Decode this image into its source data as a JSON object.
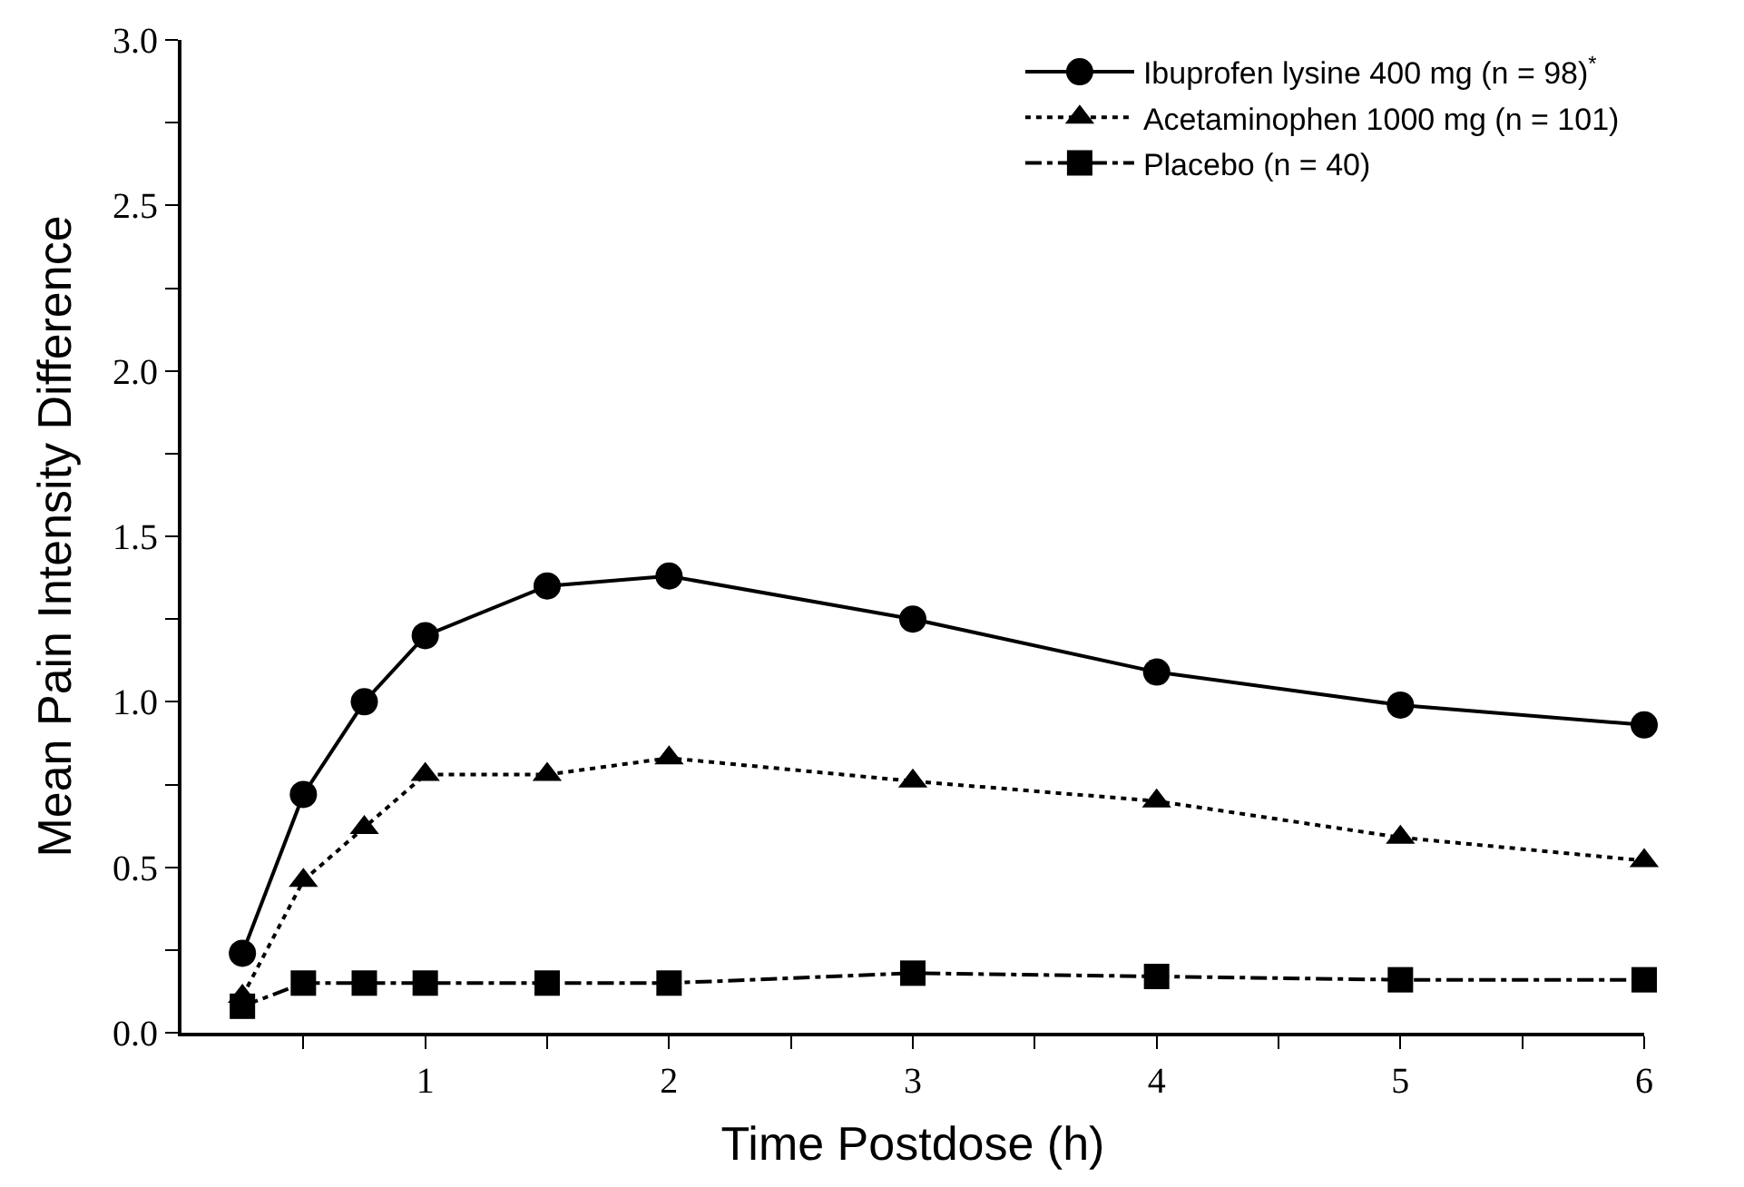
{
  "chart_data": {
    "type": "line",
    "xlabel": "Time Postdose (h)",
    "ylabel": "Mean Pain Intensity Difference",
    "x": [
      0.25,
      0.5,
      0.75,
      1,
      1.5,
      2,
      3,
      4,
      5,
      6
    ],
    "series": [
      {
        "name": "Ibuprofen lysine 400 mg (n = 98)$^{*}$",
        "color": "#000000",
        "marker": "circle",
        "line_style": "solid",
        "values": [
          0.24,
          0.72,
          1.0,
          1.2,
          1.35,
          1.38,
          1.25,
          1.09,
          0.99,
          0.93
        ]
      },
      {
        "name": "Acetaminophen 1000 mg (n = 101)",
        "color": "#000000",
        "marker": "triangle",
        "line_style": "dotted",
        "values": [
          0.11,
          0.46,
          0.62,
          0.78,
          0.78,
          0.83,
          0.76,
          0.7,
          0.59,
          0.52
        ]
      },
      {
        "name": "Placebo (n = 40)",
        "color": "#000000",
        "marker": "square",
        "line_style": "dashdot",
        "values": [
          0.08,
          0.15,
          0.15,
          0.15,
          0.15,
          0.15,
          0.18,
          0.17,
          0.16,
          0.16
        ]
      }
    ],
    "xlim": [
      0,
      6
    ],
    "xticks": [
      {
        "value": 0.5,
        "label": null
      },
      1,
      {
        "value": 1.5,
        "label": null
      },
      2,
      {
        "value": 2.5,
        "label": null
      },
      3,
      {
        "value": 3.5,
        "label": null
      },
      4,
      {
        "value": 4.5,
        "label": null
      },
      5,
      {
        "value": 5.5,
        "label": null
      },
      6
    ],
    "ylim": [
      0,
      3
    ],
    "yticks": [
      {
        "value": 0,
        "label": "0.0"
      },
      {
        "value": 0.25,
        "label": null
      },
      {
        "value": 0.5,
        "label": "0.5"
      },
      {
        "value": 0.75,
        "label": null
      },
      {
        "value": 1,
        "label": "1.0"
      },
      {
        "value": 1.25,
        "label": null
      },
      {
        "value": 1.5,
        "label": "1.5"
      },
      {
        "value": 1.75,
        "label": null
      },
      {
        "value": 2,
        "label": "2.0"
      },
      {
        "value": 2.25,
        "label": null
      },
      {
        "value": 2.5,
        "label": "2.5"
      },
      {
        "value": 2.75,
        "label": null
      },
      {
        "value": 3,
        "label": "3.0"
      }
    ],
    "legend": "top right"
  }
}
